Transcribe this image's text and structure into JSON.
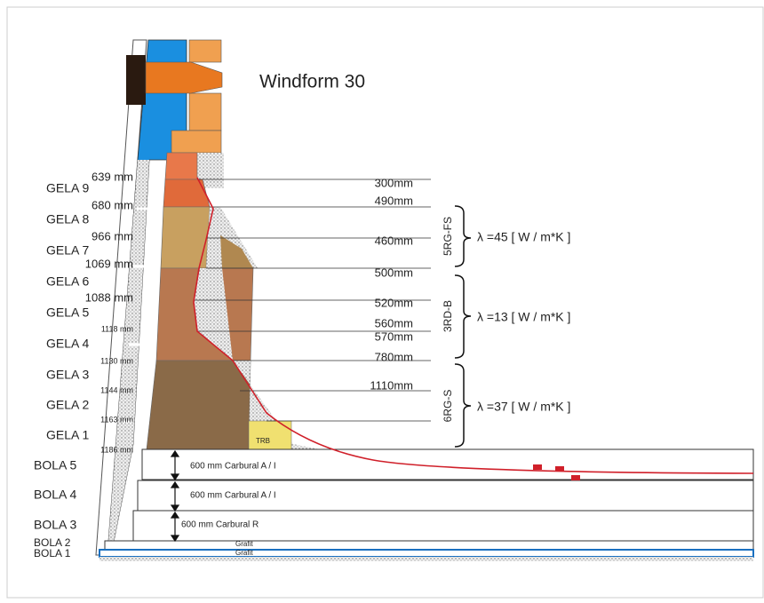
{
  "title": "Windform 30",
  "left_labels": [
    "639 mm",
    "GELA 9",
    "680 mm",
    "GELA 8",
    "966 mm",
    "GELA 7",
    "1069 mm",
    "GELA 6",
    "1088 mm",
    "GELA 5",
    "1118 mm",
    "GELA 4",
    "1130 mm",
    "GELA 3",
    "1144 mm",
    "GELA 2",
    "1163 mm",
    "GELA 1",
    "1186 mm"
  ],
  "bottom_labels": [
    "BOLA 5",
    "BOLA 4",
    "BOLA 3",
    "BOLA 2",
    "BOLA 1"
  ],
  "measures": [
    "300mm",
    "490mm",
    "460mm",
    "500mm",
    "520mm",
    "560mm",
    "570mm",
    "780mm",
    "1110mm"
  ],
  "zones": [
    {
      "code": "5RG-FS",
      "lambda": "λ =45 [ W / m*K ]"
    },
    {
      "code": "3RD-B",
      "lambda": "λ =13 [ W / m*K ]"
    },
    {
      "code": "6RG-S",
      "lambda": "λ =37 [ W / m*K ]"
    }
  ],
  "layers": [
    "600 mm  Carbural A / I",
    "600 mm  Carbural A / I",
    "600 mm  Carbural R"
  ],
  "grafit": [
    "Grafit",
    "Grafit"
  ],
  "trb": "TRB"
}
